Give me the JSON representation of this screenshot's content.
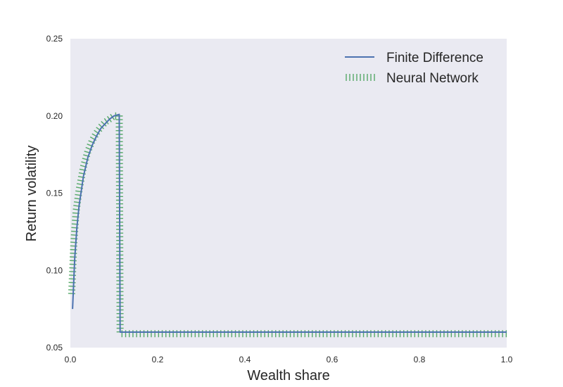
{
  "chart_data": {
    "type": "line",
    "title": "",
    "xlabel": "Wealth share",
    "ylabel": "Return volatility",
    "xlim": [
      0.0,
      1.0
    ],
    "ylim": [
      0.05,
      0.25
    ],
    "xticks": [
      "0.0",
      "0.2",
      "0.4",
      "0.6",
      "0.8",
      "1.0"
    ],
    "yticks": [
      "0.05",
      "0.10",
      "0.15",
      "0.20",
      "0.25"
    ],
    "grid": false,
    "legend_position": "top-right",
    "background_color": "#eaeaf2",
    "series": [
      {
        "name": "Finite Difference",
        "color": "#4c72b0",
        "style": "solid",
        "x": [
          0.005,
          0.01,
          0.015,
          0.02,
          0.03,
          0.04,
          0.05,
          0.06,
          0.07,
          0.08,
          0.09,
          0.1,
          0.112,
          0.113,
          0.114,
          0.2,
          0.4,
          0.6,
          0.8,
          1.0
        ],
        "y": [
          0.075,
          0.108,
          0.128,
          0.142,
          0.161,
          0.173,
          0.181,
          0.187,
          0.192,
          0.195,
          0.198,
          0.2,
          0.201,
          0.13,
          0.06,
          0.06,
          0.06,
          0.06,
          0.06,
          0.06
        ]
      },
      {
        "name": "Neural Network",
        "color": "#55a868",
        "style": "hatched",
        "x": [
          0.003,
          0.008,
          0.013,
          0.02,
          0.03,
          0.04,
          0.05,
          0.06,
          0.07,
          0.08,
          0.09,
          0.1,
          0.112,
          0.113,
          0.114,
          0.2,
          0.4,
          0.6,
          0.8,
          1.0
        ],
        "y": [
          0.085,
          0.118,
          0.138,
          0.152,
          0.167,
          0.177,
          0.184,
          0.189,
          0.193,
          0.196,
          0.198,
          0.2,
          0.2,
          0.13,
          0.059,
          0.059,
          0.059,
          0.059,
          0.059,
          0.059
        ]
      }
    ]
  }
}
